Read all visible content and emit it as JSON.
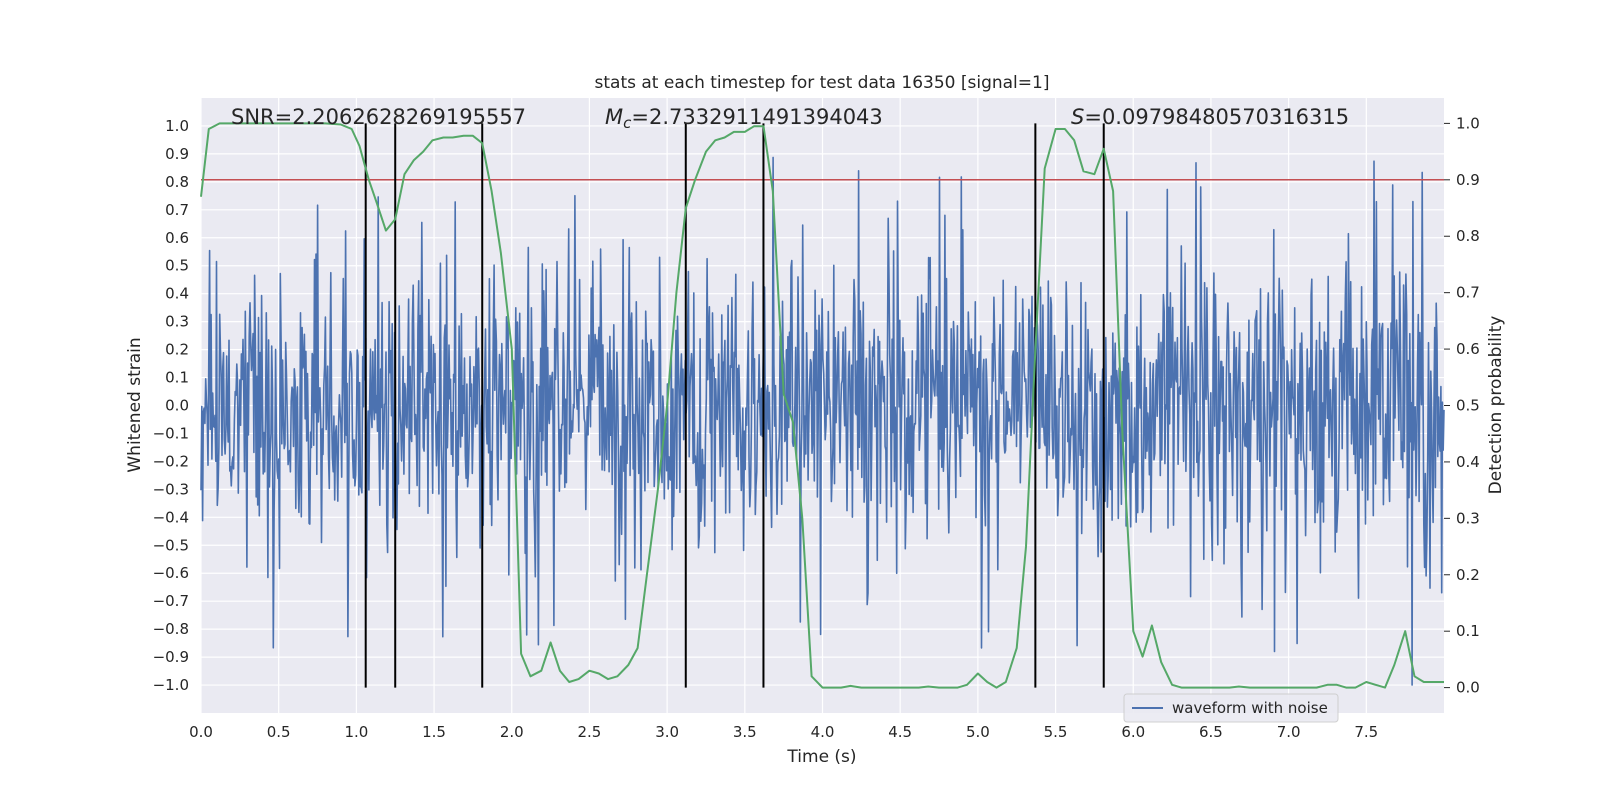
{
  "chart_data": {
    "type": "line",
    "title": "stats at each timestep for test data 16350 [signal=1]",
    "xlabel": "Time (s)",
    "ylabel": "Whitened strain",
    "y2label": "Detection probability",
    "xlim": [
      0,
      8
    ],
    "ylim": [
      -1.1,
      1.1
    ],
    "y2lim": [
      -0.045,
      1.045
    ],
    "x_ticks": [
      0.0,
      0.5,
      1.0,
      1.5,
      2.0,
      2.5,
      3.0,
      3.5,
      4.0,
      4.5,
      5.0,
      5.5,
      6.0,
      6.5,
      7.0,
      7.5
    ],
    "y_ticks": [
      1.0,
      0.9,
      0.8,
      0.7,
      0.6,
      0.5,
      0.4,
      0.3,
      0.2,
      0.1,
      0.0,
      -0.1,
      -0.2,
      -0.3,
      -0.4,
      -0.5,
      -0.6,
      -0.7,
      -0.8,
      -0.9,
      -1.0
    ],
    "y2_ticks": [
      1.0,
      0.9,
      0.8,
      0.7,
      0.6,
      0.5,
      0.4,
      0.3,
      0.2,
      0.1,
      0.0
    ],
    "y2_tick_labels_visible": [
      "1.0",
      "0.9",
      "0.8",
      "0.7",
      "0.6",
      "0.5",
      "0.4",
      "0.3",
      "0.2",
      "0.1",
      "0.0"
    ],
    "annotations": {
      "snr": "SNR=2.2062628269195557",
      "mc_symbol": "M",
      "mc_subscript": "c",
      "mc_value": "=2.7332911491394043",
      "s_symbol": "S",
      "s_value": "=0.09798480570316315"
    },
    "legend": {
      "label": "waveform with noise",
      "placement": "lower-center-right"
    },
    "threshold": {
      "value": 0.9,
      "axis": "y2",
      "color": "#C44E52"
    },
    "vertical_markers_x": [
      1.06,
      1.25,
      1.81,
      3.12,
      3.62,
      5.37,
      5.81
    ],
    "waveform": {
      "name": "waveform with noise",
      "color": "#4C72B0",
      "samples": 1600,
      "typical_amplitude": 0.4,
      "max_abs": 1.0,
      "seed": 16350
    },
    "series": [
      {
        "name": "detection probability",
        "axis": "y2",
        "color": "#55A868",
        "x": [
          0.0,
          0.05,
          0.12,
          0.2,
          0.4,
          0.6,
          0.8,
          0.9,
          0.97,
          1.02,
          1.08,
          1.13,
          1.19,
          1.25,
          1.31,
          1.37,
          1.43,
          1.49,
          1.56,
          1.62,
          1.69,
          1.75,
          1.81,
          1.87,
          1.93,
          2.0,
          2.06,
          2.12,
          2.19,
          2.25,
          2.31,
          2.37,
          2.43,
          2.5,
          2.56,
          2.62,
          2.68,
          2.75,
          2.81,
          2.87,
          2.94,
          3.0,
          3.06,
          3.12,
          3.18,
          3.25,
          3.31,
          3.37,
          3.43,
          3.5,
          3.56,
          3.62,
          3.68,
          3.75,
          3.81,
          3.87,
          3.93,
          4.0,
          4.06,
          4.12,
          4.18,
          4.25,
          4.31,
          4.37,
          4.43,
          4.5,
          4.56,
          4.62,
          4.68,
          4.75,
          4.81,
          4.87,
          4.93,
          5.0,
          5.06,
          5.12,
          5.18,
          5.25,
          5.31,
          5.37,
          5.43,
          5.5,
          5.56,
          5.62,
          5.68,
          5.75,
          5.81,
          5.87,
          5.93,
          6.0,
          6.06,
          6.12,
          6.18,
          6.25,
          6.31,
          6.37,
          6.43,
          6.5,
          6.56,
          6.62,
          6.68,
          6.75,
          6.81,
          6.87,
          6.93,
          7.0,
          7.06,
          7.12,
          7.18,
          7.25,
          7.31,
          7.37,
          7.43,
          7.5,
          7.56,
          7.62,
          7.68,
          7.75,
          7.81,
          7.87,
          7.93,
          8.0
        ],
        "values": [
          0.87,
          0.99,
          1.0,
          1.0,
          1.0,
          1.0,
          1.0,
          0.998,
          0.99,
          0.96,
          0.9,
          0.86,
          0.81,
          0.83,
          0.91,
          0.935,
          0.95,
          0.97,
          0.975,
          0.975,
          0.978,
          0.978,
          0.965,
          0.88,
          0.77,
          0.6,
          0.06,
          0.02,
          0.03,
          0.08,
          0.03,
          0.01,
          0.015,
          0.03,
          0.025,
          0.015,
          0.02,
          0.04,
          0.07,
          0.2,
          0.35,
          0.5,
          0.7,
          0.85,
          0.9,
          0.95,
          0.97,
          0.975,
          0.985,
          0.985,
          0.995,
          0.995,
          0.88,
          0.52,
          0.47,
          0.3,
          0.02,
          0.0,
          0.0,
          0.0,
          0.003,
          0.0,
          0.0,
          0.0,
          0.0,
          0.0,
          0.0,
          0.0,
          0.002,
          0.0,
          0.0,
          0.0,
          0.005,
          0.025,
          0.01,
          0.0,
          0.01,
          0.07,
          0.25,
          0.6,
          0.92,
          0.99,
          0.99,
          0.97,
          0.915,
          0.91,
          0.955,
          0.88,
          0.45,
          0.1,
          0.055,
          0.11,
          0.045,
          0.005,
          0.0,
          0.0,
          0.0,
          0.0,
          0.0,
          0.0,
          0.002,
          0.0,
          0.0,
          0.0,
          0.0,
          0.0,
          0.0,
          0.0,
          0.0,
          0.005,
          0.005,
          0.0,
          0.0,
          0.01,
          0.005,
          0.0,
          0.04,
          0.1,
          0.02,
          0.01,
          0.01,
          0.01
        ]
      }
    ]
  }
}
